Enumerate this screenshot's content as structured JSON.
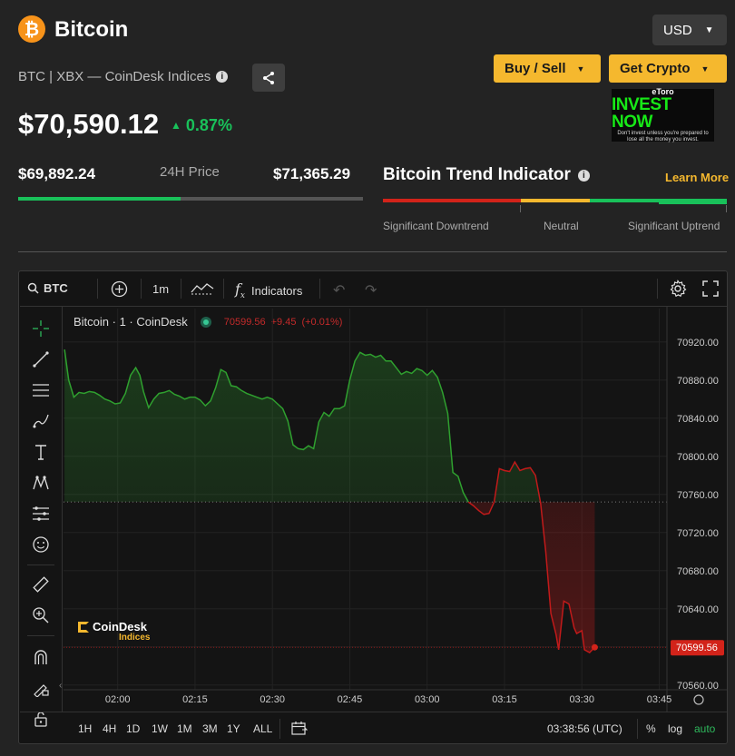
{
  "header": {
    "logo_glyph": "₿",
    "title": "Bitcoin",
    "subtitle": "BTC | XBX — CoinDesk Indices",
    "info_glyph": "i",
    "currency": "USD"
  },
  "actions": {
    "buy_sell": "Buy / Sell",
    "get_crypto": "Get Crypto"
  },
  "ad": {
    "brand": "eToro",
    "headline": "INVEST NOW",
    "disclaimer": "Don't invest unless you're prepared to lose all the money you invest."
  },
  "price": {
    "current": "$70,590.12",
    "change": "0.87%",
    "change_arrow": "▲",
    "low": "$69,892.24",
    "high": "$71,365.29",
    "range_label": "24H Price",
    "range_position_pct": 47
  },
  "trend": {
    "title": "Bitcoin Trend Indicator",
    "learn_more": "Learn More",
    "labels": [
      "Significant Downtrend",
      "Neutral",
      "Significant Uptrend"
    ],
    "segment_colors": [
      "#d2231a",
      "#d2231a",
      "#f5b82e",
      "#19c15a",
      "#19c15a"
    ],
    "active_segment_index": 4
  },
  "chart_toolbar": {
    "symbol": "BTC",
    "interval": "1m",
    "indicators": "Indicators"
  },
  "chart_legend": {
    "name": "Bitcoin · 1 · CoinDesk",
    "last": "70599.56",
    "delta": "+9.45",
    "delta_pct": "(+0.01%)"
  },
  "watermark": {
    "brand": "CoinDesk",
    "sub": "Indices"
  },
  "chart_bottom": {
    "timeframes": [
      "1H",
      "4H",
      "1D",
      "1W",
      "1M",
      "3M",
      "1Y",
      "ALL"
    ],
    "clock": "03:38:56 (UTC)",
    "percent": "%",
    "log": "log",
    "auto": "auto"
  },
  "colors": {
    "up": "#19c15a",
    "down": "#d2231a",
    "accent": "#f5b82e",
    "line_up": "#2fa02f",
    "line_down": "#c11a1a"
  },
  "chart_data": {
    "type": "area",
    "title": "Bitcoin · 1 · CoinDesk",
    "xlabel": "",
    "ylabel": "",
    "ylim": [
      70555,
      70955
    ],
    "baseline": 70752,
    "last_price": 70599.56,
    "last_price_label": "70599.56",
    "y_ticks": [
      70920,
      70880,
      70840,
      70800,
      70760,
      70720,
      70680,
      70640,
      70600,
      70560
    ],
    "y_tick_labels": [
      "70920.00",
      "70880.00",
      "70840.00",
      "70800.00",
      "70760.00",
      "70720.00",
      "70680.00",
      "70640.00",
      "70600.00",
      "70560.00"
    ],
    "x_ticks": [
      120,
      135,
      150,
      165,
      180,
      195,
      210,
      225
    ],
    "x_tick_labels": [
      "02:00",
      "02:15",
      "02:30",
      "02:45",
      "03:00",
      "03:15",
      "03:30",
      "03:45"
    ],
    "x_range": [
      109.5,
      226.5
    ],
    "series": [
      {
        "values": [
          [
            109.7,
            70912
          ],
          [
            110.5,
            70880
          ],
          [
            111.5,
            70862
          ],
          [
            112.5,
            70867
          ],
          [
            113.5,
            70866
          ],
          [
            114.5,
            70868
          ],
          [
            115.5,
            70867
          ],
          [
            116.5,
            70864
          ],
          [
            117.5,
            70860
          ],
          [
            118.5,
            70858
          ],
          [
            119.5,
            70855
          ],
          [
            120.5,
            70856
          ],
          [
            121.5,
            70866
          ],
          [
            122.5,
            70885
          ],
          [
            123.5,
            70893
          ],
          [
            124.3,
            70885
          ],
          [
            125,
            70868
          ],
          [
            126,
            70851
          ],
          [
            127,
            70860
          ],
          [
            128,
            70866
          ],
          [
            129,
            70867
          ],
          [
            130,
            70869
          ],
          [
            131,
            70865
          ],
          [
            132,
            70863
          ],
          [
            133,
            70860
          ],
          [
            134,
            70862
          ],
          [
            135,
            70862
          ],
          [
            136,
            70859
          ],
          [
            137,
            70853
          ],
          [
            138,
            70858
          ],
          [
            139,
            70872
          ],
          [
            140,
            70891
          ],
          [
            141,
            70888
          ],
          [
            142,
            70874
          ],
          [
            143,
            70873
          ],
          [
            144,
            70869
          ],
          [
            145,
            70866
          ],
          [
            146,
            70864
          ],
          [
            147,
            70862
          ],
          [
            148,
            70860
          ],
          [
            149,
            70862
          ],
          [
            150,
            70860
          ],
          [
            151,
            70855
          ],
          [
            152,
            70850
          ],
          [
            153,
            70837
          ],
          [
            154,
            70812
          ],
          [
            155,
            70808
          ],
          [
            156,
            70807
          ],
          [
            157,
            70811
          ],
          [
            158,
            70808
          ],
          [
            159,
            70836
          ],
          [
            160,
            70846
          ],
          [
            161,
            70842
          ],
          [
            162,
            70850
          ],
          [
            163,
            70850
          ],
          [
            164,
            70853
          ],
          [
            165,
            70880
          ],
          [
            166,
            70900
          ],
          [
            167,
            70909
          ],
          [
            168,
            70906
          ],
          [
            169,
            70907
          ],
          [
            170,
            70904
          ],
          [
            171,
            70906
          ],
          [
            172,
            70900
          ],
          [
            173,
            70900
          ],
          [
            174,
            70893
          ],
          [
            175,
            70886
          ],
          [
            176,
            70889
          ],
          [
            177,
            70887
          ],
          [
            178,
            70892
          ],
          [
            179,
            70890
          ],
          [
            180,
            70885
          ],
          [
            181,
            70890
          ],
          [
            182,
            70883
          ],
          [
            183,
            70867
          ],
          [
            184,
            70845
          ],
          [
            185,
            70783
          ],
          [
            186,
            70779
          ],
          [
            187,
            70762
          ],
          [
            188,
            70752
          ]
        ],
        "color": "#2fa02f"
      },
      {
        "values": [
          [
            188,
            70752
          ],
          [
            189,
            70748
          ],
          [
            190,
            70743
          ],
          [
            191,
            70739
          ],
          [
            192,
            70740
          ],
          [
            193,
            70752
          ],
          [
            194,
            70787
          ],
          [
            195,
            70785
          ],
          [
            196,
            70784
          ],
          [
            197,
            70794
          ],
          [
            198,
            70785
          ],
          [
            199,
            70787
          ],
          [
            200,
            70788
          ],
          [
            201,
            70780
          ],
          [
            202,
            70751
          ],
          [
            203,
            70700
          ],
          [
            204,
            70635
          ],
          [
            205,
            70613
          ],
          [
            205.5,
            70597
          ],
          [
            206.5,
            70648
          ],
          [
            207.5,
            70645
          ],
          [
            208.5,
            70620
          ],
          [
            209,
            70614
          ],
          [
            210,
            70617
          ],
          [
            210.5,
            70597
          ],
          [
            211.5,
            70594
          ],
          [
            212.5,
            70599.56
          ]
        ],
        "color": "#c11a1a"
      }
    ]
  }
}
